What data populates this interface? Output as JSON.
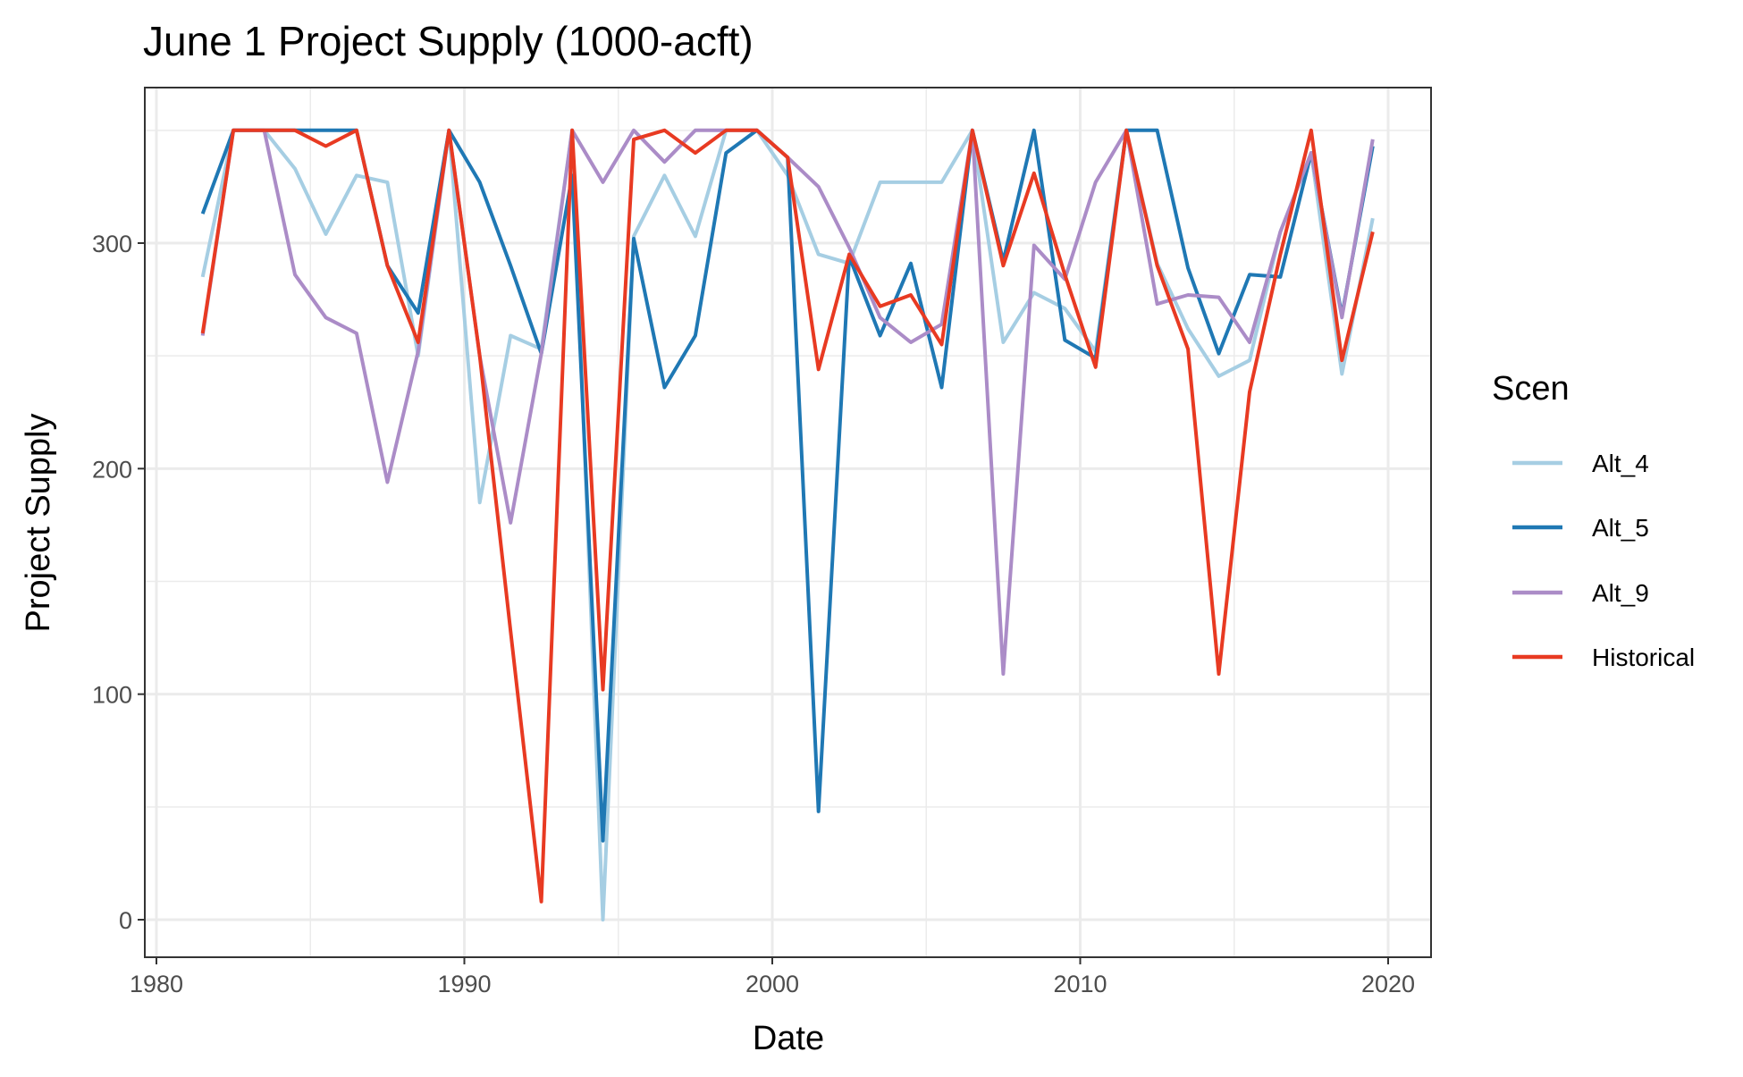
{
  "chart_data": {
    "type": "line",
    "title": "June 1 Project Supply (1000-acft)",
    "xlabel": "Date",
    "ylabel": "Project Supply",
    "xlim": [
      1980,
      2020
    ],
    "ylim": [
      0,
      350
    ],
    "x_ticks": [
      1980,
      1990,
      2000,
      2010,
      2020
    ],
    "y_ticks": [
      0,
      100,
      200,
      300
    ],
    "grid": true,
    "legend": {
      "title": "Scen",
      "position": "right"
    },
    "x": [
      1981.5,
      1982.5,
      1983.5,
      1984.5,
      1985.5,
      1986.5,
      1987.5,
      1988.5,
      1989.5,
      1990.5,
      1991.5,
      1992.5,
      1993.5,
      1994.5,
      1995.5,
      1996.5,
      1997.5,
      1998.5,
      1999.5,
      2000.5,
      2001.5,
      2002.5,
      2003.5,
      2004.5,
      2005.5,
      2006.5,
      2007.5,
      2008.5,
      2009.5,
      2010.5,
      2011.5,
      2012.5,
      2013.5,
      2014.5,
      2015.5,
      2016.5,
      2017.5,
      2018.5,
      2019.5
    ],
    "series": [
      {
        "name": "Alt_4",
        "color": "#a6cee3",
        "values": [
          285,
          350,
          350,
          333,
          304,
          330,
          327,
          250,
          350,
          185,
          259,
          253,
          350,
          0,
          303,
          330,
          303,
          350,
          350,
          330,
          295,
          291,
          327,
          327,
          327,
          350,
          256,
          278,
          271,
          252,
          350,
          291,
          262,
          241,
          248,
          305,
          340,
          242,
          311
        ]
      },
      {
        "name": "Alt_5",
        "color": "#1f78b4",
        "values": [
          313,
          350,
          350,
          350,
          350,
          350,
          290,
          269,
          350,
          327,
          290,
          251,
          330,
          35,
          302,
          236,
          259,
          340,
          350,
          338,
          48,
          294,
          259,
          291,
          236,
          350,
          292,
          350,
          257,
          249,
          350,
          350,
          289,
          251,
          286,
          285,
          340,
          268,
          343
        ]
      },
      {
        "name": "Alt_9",
        "color": "#ab8cc7",
        "values": [
          259,
          350,
          350,
          286,
          267,
          260,
          194,
          252,
          350,
          250,
          176,
          251,
          350,
          327,
          350,
          336,
          350,
          350,
          350,
          338,
          325,
          298,
          267,
          256,
          264,
          350,
          109,
          299,
          284,
          327,
          350,
          273,
          277,
          276,
          256,
          305,
          340,
          267,
          346
        ]
      },
      {
        "name": "Historical",
        "color": "#e83a22",
        "values": [
          260,
          350,
          350,
          350,
          343,
          350,
          290,
          256,
          350,
          250,
          128,
          8,
          350,
          102,
          346,
          350,
          340,
          350,
          350,
          338,
          244,
          295,
          272,
          277,
          255,
          350,
          290,
          331,
          286,
          245,
          350,
          290,
          253,
          109,
          234,
          295,
          350,
          248,
          305
        ]
      }
    ]
  }
}
